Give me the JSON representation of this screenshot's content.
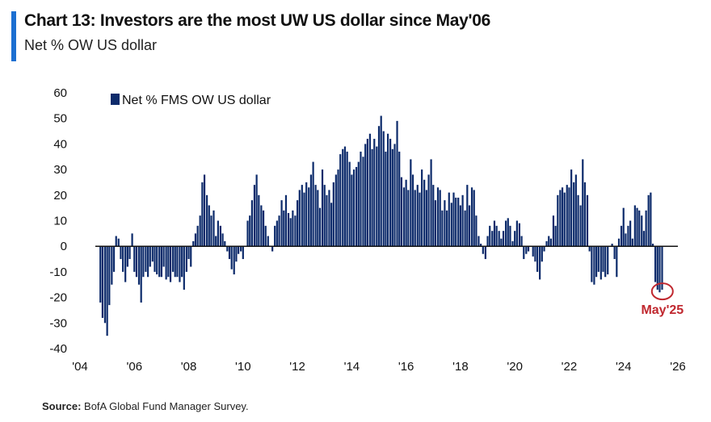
{
  "header": {
    "title": "Chart 13: Investors are the most UW US dollar since May'06",
    "subtitle": "Net % OW US dollar"
  },
  "source": {
    "label": "Source:",
    "text": "BofA Global Fund Manager Survey."
  },
  "colors": {
    "bar": "#0d2b6b",
    "accent": "#1c6fd1",
    "annotation": "#c0282f"
  },
  "chart_data": {
    "type": "bar",
    "title": "Chart 13: Investors are the most UW US dollar since May'06",
    "subtitle": "Net % OW US dollar",
    "legend": "Net % FMS OW US dollar",
    "legend_position": "top-left",
    "grid": false,
    "ylim": [
      -40,
      60
    ],
    "yticks": [
      60,
      50,
      40,
      30,
      20,
      10,
      0,
      -10,
      -20,
      -30,
      -40
    ],
    "xlim": [
      2004,
      2026
    ],
    "xticks": [
      "'04",
      "'06",
      "'08",
      "'10",
      "'12",
      "'14",
      "'16",
      "'18",
      "'20",
      "'22",
      "'24",
      "'26"
    ],
    "x_tick_years": [
      2004,
      2006,
      2008,
      2010,
      2012,
      2014,
      2016,
      2018,
      2020,
      2022,
      2024,
      2026
    ],
    "annotation": {
      "label": "May'25",
      "x": 2025.37,
      "y": -17
    },
    "series": [
      {
        "name": "Net % FMS OW US dollar",
        "x": [
          2004.75,
          2004.83,
          2004.92,
          2005.0,
          2005.08,
          2005.17,
          2005.25,
          2005.33,
          2005.42,
          2005.5,
          2005.58,
          2005.67,
          2005.75,
          2005.83,
          2005.92,
          2006.0,
          2006.08,
          2006.17,
          2006.25,
          2006.33,
          2006.42,
          2006.5,
          2006.58,
          2006.67,
          2006.75,
          2006.83,
          2006.92,
          2007.0,
          2007.08,
          2007.17,
          2007.25,
          2007.33,
          2007.42,
          2007.5,
          2007.58,
          2007.67,
          2007.75,
          2007.83,
          2007.92,
          2008.0,
          2008.08,
          2008.17,
          2008.25,
          2008.33,
          2008.42,
          2008.5,
          2008.58,
          2008.67,
          2008.75,
          2008.83,
          2008.92,
          2009.0,
          2009.08,
          2009.17,
          2009.25,
          2009.33,
          2009.42,
          2009.5,
          2009.58,
          2009.67,
          2009.75,
          2009.83,
          2009.92,
          2010.0,
          2010.08,
          2010.17,
          2010.25,
          2010.33,
          2010.42,
          2010.5,
          2010.58,
          2010.67,
          2010.75,
          2010.83,
          2010.92,
          2011.0,
          2011.08,
          2011.17,
          2011.25,
          2011.33,
          2011.42,
          2011.5,
          2011.58,
          2011.67,
          2011.75,
          2011.83,
          2011.92,
          2012.0,
          2012.08,
          2012.17,
          2012.25,
          2012.33,
          2012.42,
          2012.5,
          2012.58,
          2012.67,
          2012.75,
          2012.83,
          2012.92,
          2013.0,
          2013.08,
          2013.17,
          2013.25,
          2013.33,
          2013.42,
          2013.5,
          2013.58,
          2013.67,
          2013.75,
          2013.83,
          2013.92,
          2014.0,
          2014.08,
          2014.17,
          2014.25,
          2014.33,
          2014.42,
          2014.5,
          2014.58,
          2014.67,
          2014.75,
          2014.83,
          2014.92,
          2015.0,
          2015.08,
          2015.17,
          2015.25,
          2015.33,
          2015.42,
          2015.5,
          2015.58,
          2015.67,
          2015.75,
          2015.83,
          2015.92,
          2016.0,
          2016.08,
          2016.17,
          2016.25,
          2016.33,
          2016.42,
          2016.5,
          2016.58,
          2016.67,
          2016.75,
          2016.83,
          2016.92,
          2017.0,
          2017.08,
          2017.17,
          2017.25,
          2017.33,
          2017.42,
          2017.5,
          2017.58,
          2017.67,
          2017.75,
          2017.83,
          2017.92,
          2018.0,
          2018.08,
          2018.17,
          2018.25,
          2018.33,
          2018.42,
          2018.5,
          2018.58,
          2018.67,
          2018.75,
          2018.83,
          2018.92,
          2019.0,
          2019.08,
          2019.17,
          2019.25,
          2019.33,
          2019.42,
          2019.5,
          2019.58,
          2019.67,
          2019.75,
          2019.83,
          2019.92,
          2020.0,
          2020.08,
          2020.17,
          2020.25,
          2020.33,
          2020.42,
          2020.5,
          2020.58,
          2020.67,
          2020.75,
          2020.83,
          2020.92,
          2021.0,
          2021.08,
          2021.17,
          2021.25,
          2021.33,
          2021.42,
          2021.5,
          2021.58,
          2021.67,
          2021.75,
          2021.83,
          2021.92,
          2022.0,
          2022.08,
          2022.17,
          2022.25,
          2022.33,
          2022.42,
          2022.5,
          2022.58,
          2022.67,
          2022.75,
          2022.83,
          2022.92,
          2023.0,
          2023.08,
          2023.17,
          2023.25,
          2023.33,
          2023.42,
          2023.5,
          2023.58,
          2023.67,
          2023.75,
          2023.83,
          2023.92,
          2024.0,
          2024.08,
          2024.17,
          2024.25,
          2024.33,
          2024.42,
          2024.5,
          2024.58,
          2024.67,
          2024.75,
          2024.83,
          2024.92,
          2025.0,
          2025.08,
          2025.17,
          2025.25,
          2025.33,
          2025.42
        ],
        "values": [
          -22,
          -28,
          -30,
          -35,
          -23,
          -15,
          -10,
          4,
          3,
          -5,
          -10,
          -14,
          -8,
          -5,
          5,
          -10,
          -12,
          -15,
          -22,
          -12,
          -10,
          -12,
          -8,
          -6,
          -10,
          -11,
          -12,
          -12,
          -8,
          -13,
          -12,
          -14,
          -10,
          -12,
          -12,
          -14,
          -12,
          -17,
          -10,
          -5,
          -8,
          2,
          5,
          8,
          12,
          25,
          28,
          20,
          16,
          12,
          14,
          4,
          10,
          8,
          5,
          2,
          -2,
          -5,
          -9,
          -11,
          -6,
          -3,
          -2,
          -5,
          0,
          10,
          12,
          18,
          24,
          28,
          20,
          16,
          14,
          8,
          4,
          0,
          -2,
          8,
          10,
          12,
          18,
          14,
          20,
          13,
          11,
          14,
          12,
          18,
          22,
          24,
          21,
          25,
          23,
          28,
          33,
          24,
          22,
          15,
          30,
          24,
          20,
          22,
          17,
          25,
          28,
          30,
          36,
          38,
          39,
          37,
          33,
          28,
          30,
          31,
          33,
          37,
          35,
          40,
          42,
          44,
          38,
          42,
          39,
          47,
          51,
          45,
          37,
          44,
          42,
          38,
          40,
          49,
          37,
          27,
          23,
          26,
          22,
          34,
          28,
          22,
          24,
          21,
          30,
          26,
          22,
          28,
          34,
          24,
          18,
          23,
          22,
          14,
          18,
          14,
          21,
          17,
          21,
          19,
          19,
          16,
          20,
          14,
          24,
          16,
          23,
          22,
          12,
          4,
          1,
          -3,
          -5,
          4,
          8,
          6,
          10,
          8,
          6,
          3,
          6,
          10,
          11,
          8,
          2,
          6,
          10,
          9,
          4,
          -5,
          -3,
          -2,
          0,
          -4,
          -6,
          -10,
          -13,
          -6,
          -2,
          2,
          4,
          3,
          12,
          8,
          20,
          22,
          23,
          21,
          24,
          23,
          30,
          25,
          28,
          20,
          16,
          34,
          25,
          20,
          -2,
          -14,
          -15,
          -12,
          -10,
          -13,
          -10,
          -12,
          -11,
          0,
          1,
          -5,
          -12,
          3,
          8,
          15,
          5,
          8,
          10,
          3,
          16,
          15,
          14,
          12,
          6,
          14,
          20,
          21,
          1,
          -14,
          -17,
          -18,
          -17
        ]
      }
    ]
  }
}
